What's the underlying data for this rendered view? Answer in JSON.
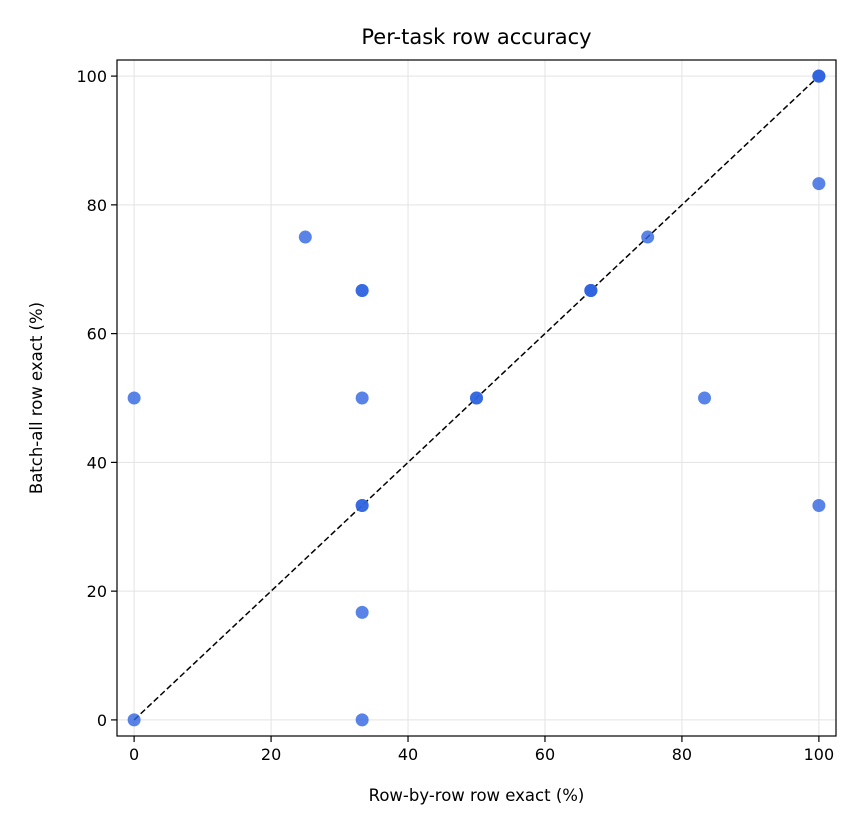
{
  "chart_data": {
    "type": "scatter",
    "title": "Per-task row accuracy",
    "xlabel": "Row-by-row row exact (%)",
    "ylabel": "Batch-all row exact (%)",
    "xlim": [
      -2.5,
      102.5
    ],
    "ylim": [
      -2.5,
      102.5
    ],
    "xticks": [
      0,
      20,
      40,
      60,
      80,
      100
    ],
    "yticks": [
      0,
      20,
      40,
      60,
      80,
      100
    ],
    "grid": true,
    "reference_line": {
      "style": "dashed",
      "color": "#000000",
      "from": [
        0,
        0
      ],
      "to": [
        100,
        100
      ]
    },
    "point_color": "#2f64e0",
    "points": [
      {
        "x": 0,
        "y": 0
      },
      {
        "x": 0,
        "y": 50
      },
      {
        "x": 25,
        "y": 75
      },
      {
        "x": 33.3,
        "y": 66.7
      },
      {
        "x": 33.3,
        "y": 66.7
      },
      {
        "x": 33.3,
        "y": 50
      },
      {
        "x": 33.3,
        "y": 33.3
      },
      {
        "x": 33.3,
        "y": 33.3
      },
      {
        "x": 33.3,
        "y": 16.7
      },
      {
        "x": 33.3,
        "y": 0
      },
      {
        "x": 50,
        "y": 50
      },
      {
        "x": 50,
        "y": 50
      },
      {
        "x": 66.7,
        "y": 66.7
      },
      {
        "x": 66.7,
        "y": 66.7
      },
      {
        "x": 66.7,
        "y": 66.7
      },
      {
        "x": 75,
        "y": 75
      },
      {
        "x": 83.3,
        "y": 50
      },
      {
        "x": 100,
        "y": 100
      },
      {
        "x": 100,
        "y": 100
      },
      {
        "x": 100,
        "y": 100
      },
      {
        "x": 100,
        "y": 83.3
      },
      {
        "x": 100,
        "y": 33.3
      }
    ]
  }
}
